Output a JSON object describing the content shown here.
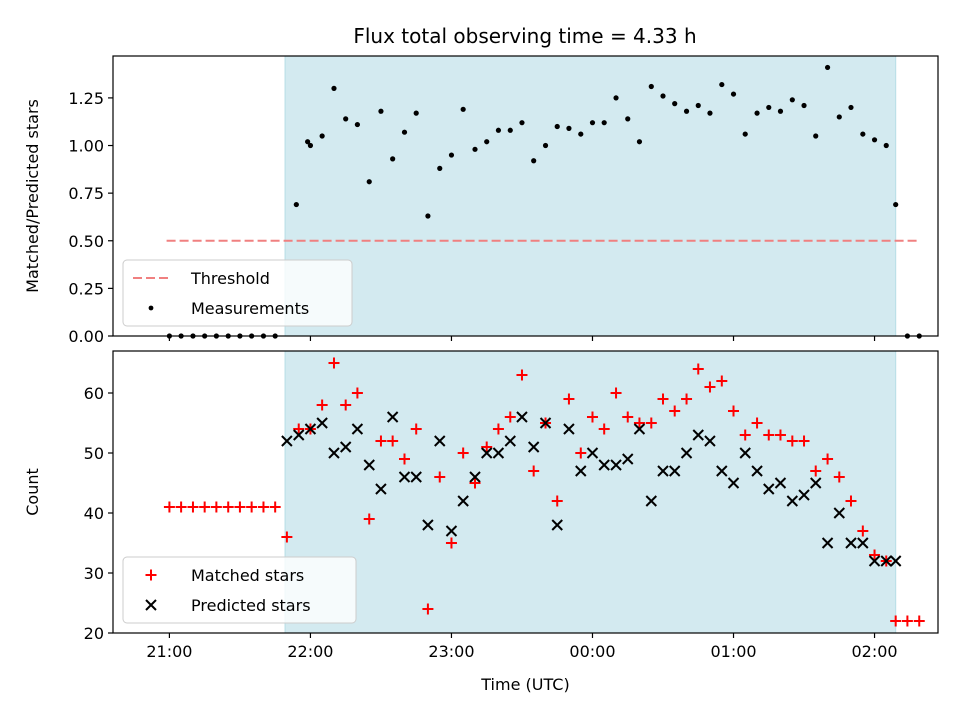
{
  "chart_data": [
    {
      "type": "scatter",
      "title": "Flux total observing time = 4.33 h",
      "xlabel": "",
      "ylabel": "Matched/Predicted stars",
      "xlim": [
        20.6,
        26.45
      ],
      "ylim": [
        0,
        1.47
      ],
      "y_ticks": [
        0.0,
        0.25,
        0.5,
        0.75,
        1.0,
        1.25
      ],
      "y_tick_labels": [
        "0.00",
        "0.25",
        "0.50",
        "0.75",
        "1.00",
        "1.25"
      ],
      "x_ticks": [
        21,
        22,
        23,
        24,
        25,
        26
      ],
      "shaded_interval": [
        21.82,
        26.15
      ],
      "shade_color": "#d3eaf0",
      "threshold": {
        "name": "Threshold",
        "value": 0.5,
        "x_range": [
          20.98,
          26.32
        ],
        "color": "#f08080"
      },
      "legend": {
        "placement": "lower-left",
        "entries": [
          "Threshold",
          "Measurements"
        ]
      },
      "series": [
        {
          "name": "Measurements",
          "color": "#000000",
          "marker": "dot",
          "x": [
            21.0,
            21.083,
            21.167,
            21.25,
            21.333,
            21.417,
            21.5,
            21.583,
            21.667,
            21.75,
            21.9,
            21.98,
            22.0,
            22.083,
            22.167,
            22.25,
            22.333,
            22.417,
            22.5,
            22.583,
            22.667,
            22.75,
            22.833,
            22.917,
            23.0,
            23.083,
            23.167,
            23.25,
            23.333,
            23.417,
            23.5,
            23.583,
            23.667,
            23.75,
            23.833,
            23.917,
            24.0,
            24.083,
            24.167,
            24.25,
            24.333,
            24.417,
            24.5,
            24.583,
            24.667,
            24.75,
            24.833,
            24.917,
            25.0,
            25.083,
            25.167,
            25.25,
            25.333,
            25.417,
            25.5,
            25.583,
            25.667,
            25.75,
            25.833,
            25.917,
            26.0,
            26.083,
            26.15,
            26.233,
            26.317
          ],
          "y": [
            0.0,
            0.0,
            0.0,
            0.0,
            0.0,
            0.0,
            0.0,
            0.0,
            0.0,
            0.0,
            0.69,
            1.02,
            1.0,
            1.05,
            1.3,
            1.14,
            1.11,
            0.81,
            1.18,
            0.93,
            1.07,
            1.17,
            0.63,
            0.88,
            0.95,
            1.19,
            0.98,
            1.02,
            1.08,
            1.08,
            1.12,
            0.92,
            1.0,
            1.1,
            1.09,
            1.06,
            1.12,
            1.12,
            1.25,
            1.14,
            1.02,
            1.31,
            1.26,
            1.22,
            1.18,
            1.21,
            1.17,
            1.32,
            1.27,
            1.06,
            1.17,
            1.2,
            1.18,
            1.24,
            1.21,
            1.05,
            1.41,
            1.15,
            1.2,
            1.06,
            1.03,
            1.0,
            0.69,
            0.0,
            0.0
          ]
        }
      ]
    },
    {
      "type": "scatter",
      "title": "",
      "xlabel": "Time (UTC)",
      "ylabel": "Count",
      "xlim": [
        20.6,
        26.45
      ],
      "ylim": [
        20,
        67
      ],
      "y_ticks": [
        20,
        30,
        40,
        50,
        60
      ],
      "y_tick_labels": [
        "20",
        "30",
        "40",
        "50",
        "60"
      ],
      "x_ticks": [
        21,
        22,
        23,
        24,
        25,
        26
      ],
      "x_tick_labels": [
        "21:00",
        "22:00",
        "23:00",
        "00:00",
        "01:00",
        "02:00"
      ],
      "shaded_interval": [
        21.82,
        26.15
      ],
      "shade_color": "#d3eaf0",
      "legend": {
        "placement": "lower-left",
        "entries": [
          "Matched stars",
          "Predicted stars"
        ]
      },
      "series": [
        {
          "name": "Matched stars",
          "color": "#ff0000",
          "marker": "plus",
          "x": [
            21.0,
            21.083,
            21.167,
            21.25,
            21.333,
            21.417,
            21.5,
            21.583,
            21.667,
            21.75,
            21.833,
            21.917,
            22.0,
            22.083,
            22.167,
            22.25,
            22.333,
            22.417,
            22.5,
            22.583,
            22.667,
            22.75,
            22.833,
            22.917,
            23.0,
            23.083,
            23.167,
            23.25,
            23.333,
            23.417,
            23.5,
            23.583,
            23.667,
            23.75,
            23.833,
            23.917,
            24.0,
            24.083,
            24.167,
            24.25,
            24.333,
            24.417,
            24.5,
            24.583,
            24.667,
            24.75,
            24.833,
            24.917,
            25.0,
            25.083,
            25.167,
            25.25,
            25.333,
            25.417,
            25.5,
            25.583,
            25.667,
            25.75,
            25.833,
            25.917,
            26.0,
            26.083,
            26.15,
            26.233,
            26.317
          ],
          "y": [
            41,
            41,
            41,
            41,
            41,
            41,
            41,
            41,
            41,
            41,
            36,
            54,
            54,
            58,
            65,
            58,
            60,
            39,
            52,
            52,
            49,
            54,
            24,
            46,
            35,
            50,
            45,
            51,
            54,
            56,
            63,
            47,
            55,
            42,
            59,
            50,
            56,
            54,
            60,
            56,
            55,
            55,
            59,
            57,
            59,
            64,
            61,
            62,
            57,
            53,
            55,
            53,
            53,
            52,
            52,
            47,
            49,
            46,
            42,
            37,
            33,
            32,
            22,
            22,
            22
          ]
        },
        {
          "name": "Predicted stars",
          "color": "#000000",
          "marker": "x",
          "x": [
            21.833,
            21.917,
            22.0,
            22.083,
            22.167,
            22.25,
            22.333,
            22.417,
            22.5,
            22.583,
            22.667,
            22.75,
            22.833,
            22.917,
            23.0,
            23.083,
            23.167,
            23.25,
            23.333,
            23.417,
            23.5,
            23.583,
            23.667,
            23.75,
            23.833,
            23.917,
            24.0,
            24.083,
            24.167,
            24.25,
            24.333,
            24.417,
            24.5,
            24.583,
            24.667,
            24.75,
            24.833,
            24.917,
            25.0,
            25.083,
            25.167,
            25.25,
            25.333,
            25.417,
            25.5,
            25.583,
            25.667,
            25.75,
            25.833,
            25.917,
            26.0,
            26.083,
            26.15
          ],
          "y": [
            52,
            53,
            54,
            55,
            50,
            51,
            54,
            48,
            44,
            56,
            46,
            46,
            38,
            52,
            37,
            42,
            46,
            50,
            50,
            52,
            56,
            51,
            55,
            38,
            54,
            47,
            50,
            48,
            48,
            49,
            54,
            42,
            47,
            47,
            50,
            53,
            52,
            47,
            45,
            50,
            47,
            44,
            45,
            42,
            43,
            45,
            35,
            40,
            35,
            35,
            32,
            32,
            32
          ]
        }
      ]
    }
  ]
}
